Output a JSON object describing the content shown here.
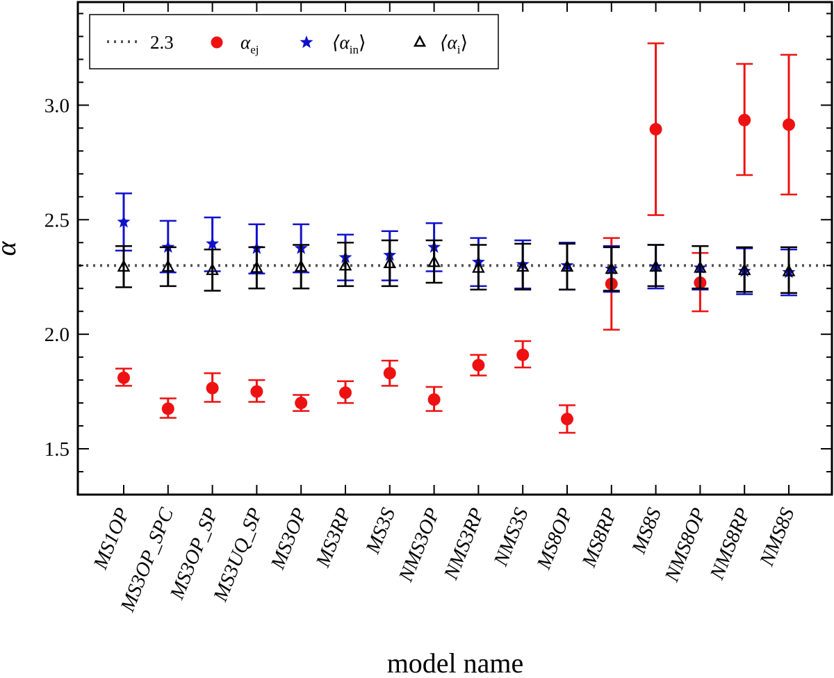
{
  "chart_data": {
    "type": "scatter",
    "xlabel": "model name",
    "ylabel": "α",
    "ylim": [
      1.3,
      3.45
    ],
    "yticks": [
      1.5,
      2.0,
      2.5,
      3.0
    ],
    "ytick_labels": [
      "1.5",
      "2.0",
      "2.5",
      "3.0"
    ],
    "y_minor_step": 0.1,
    "categories": [
      "MS1OP",
      "MS3OP_SPC",
      "MS3OP_SP",
      "MS3UQ_SP",
      "MS3OP",
      "MS3RP",
      "MS3S",
      "NMS3OP",
      "NMS3RP",
      "NMS3S",
      "MS8OP",
      "MS8RP",
      "MS8S",
      "NMS8OP",
      "NMS8RP",
      "NMS8S"
    ],
    "reference_line": {
      "name": "2.3",
      "value": 2.3,
      "color": "#555555",
      "style": "dotted"
    },
    "series": [
      {
        "name": "ej",
        "marker": "circle",
        "color": "#ee1111",
        "values": [
          1.81,
          1.675,
          1.765,
          1.75,
          1.7,
          1.745,
          1.83,
          1.715,
          1.865,
          1.91,
          1.63,
          2.22,
          2.895,
          2.225,
          2.935,
          2.915
        ],
        "err_low": [
          1.775,
          1.635,
          1.705,
          1.705,
          1.665,
          1.7,
          1.775,
          1.665,
          1.82,
          1.855,
          1.57,
          2.02,
          2.52,
          2.1,
          2.695,
          2.61
        ],
        "err_high": [
          1.85,
          1.72,
          1.83,
          1.8,
          1.735,
          1.795,
          1.885,
          1.77,
          1.91,
          1.97,
          1.69,
          2.42,
          3.27,
          2.355,
          3.18,
          3.22
        ]
      },
      {
        "name": "in",
        "marker": "star",
        "color": "#1111cc",
        "values": [
          2.49,
          2.38,
          2.395,
          2.375,
          2.375,
          2.335,
          2.345,
          2.38,
          2.315,
          2.305,
          2.3,
          2.285,
          2.295,
          2.29,
          2.275,
          2.27
        ],
        "err_low": [
          2.365,
          2.27,
          2.275,
          2.265,
          2.27,
          2.235,
          2.235,
          2.275,
          2.21,
          2.2,
          2.195,
          2.185,
          2.2,
          2.195,
          2.175,
          2.17
        ],
        "err_high": [
          2.615,
          2.495,
          2.51,
          2.48,
          2.48,
          2.435,
          2.45,
          2.485,
          2.42,
          2.41,
          2.4,
          2.385,
          2.39,
          2.385,
          2.375,
          2.37
        ]
      },
      {
        "name": "i",
        "marker": "triangle",
        "color": "#000000",
        "values": [
          2.295,
          2.295,
          2.28,
          2.29,
          2.295,
          2.3,
          2.31,
          2.315,
          2.29,
          2.295,
          2.295,
          2.285,
          2.295,
          2.29,
          2.28,
          2.275
        ],
        "err_low": [
          2.205,
          2.21,
          2.19,
          2.2,
          2.2,
          2.21,
          2.21,
          2.225,
          2.195,
          2.195,
          2.195,
          2.19,
          2.21,
          2.2,
          2.185,
          2.18
        ],
        "err_high": [
          2.385,
          2.38,
          2.37,
          2.38,
          2.39,
          2.4,
          2.41,
          2.41,
          2.39,
          2.395,
          2.395,
          2.38,
          2.39,
          2.385,
          2.38,
          2.38
        ]
      }
    ]
  },
  "legend": {
    "items": [
      {
        "label": "2.3",
        "kind": "line"
      },
      {
        "label": "α",
        "sub": "ej",
        "kind": "circle"
      },
      {
        "label": "⟨α",
        "sub": "in",
        "close": "⟩",
        "kind": "star"
      },
      {
        "label": "⟨α",
        "sub": "i",
        "close": "⟩",
        "kind": "triangle"
      }
    ]
  }
}
